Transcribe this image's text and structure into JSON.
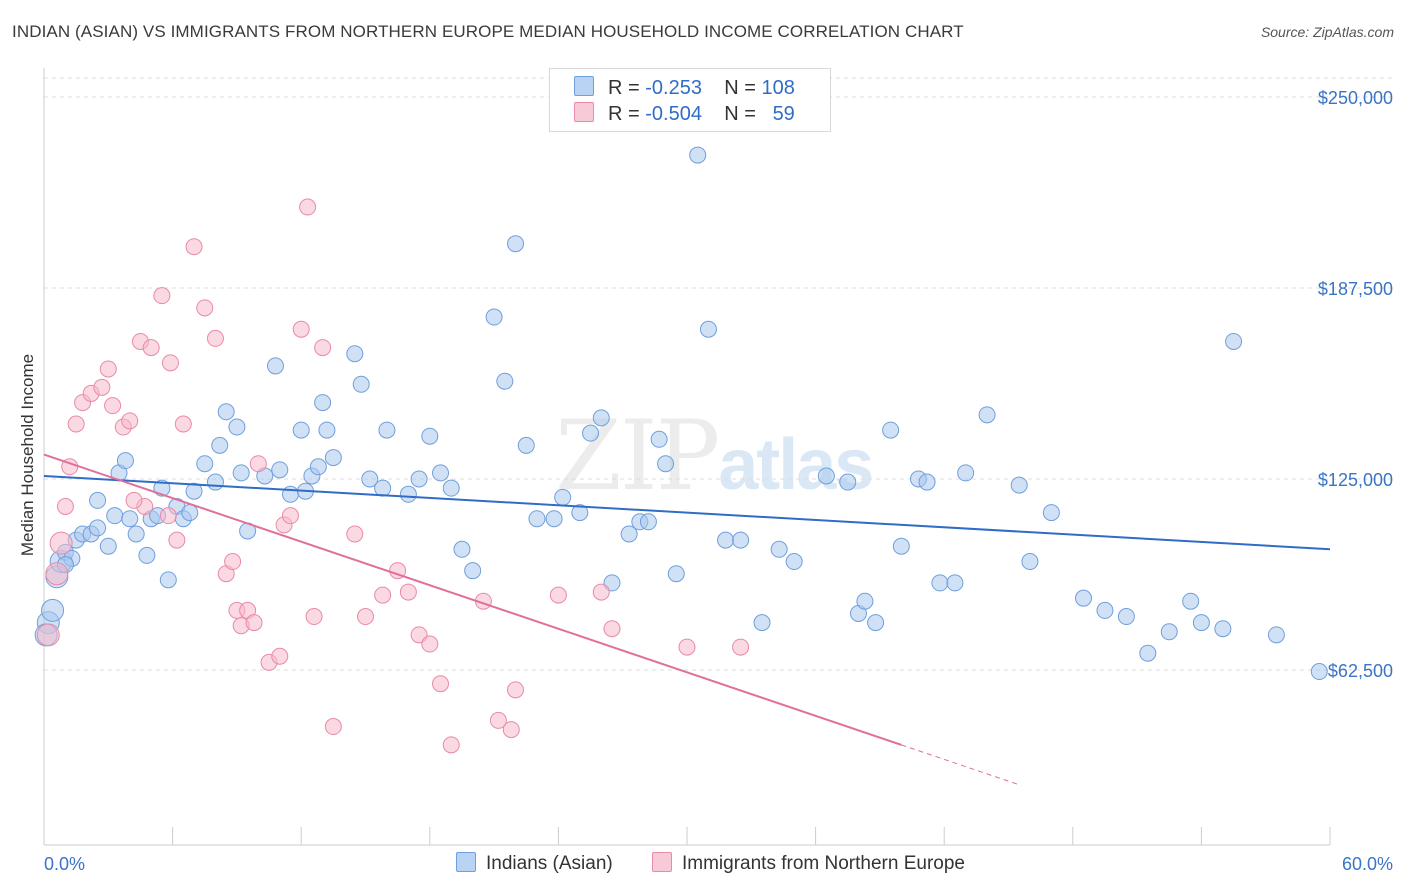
{
  "header": {
    "title": "INDIAN (ASIAN) VS IMMIGRANTS FROM NORTHERN EUROPE MEDIAN HOUSEHOLD INCOME CORRELATION CHART",
    "source": "Source: ZipAtlas.com"
  },
  "watermark": {
    "zip": "ZIP",
    "atlas": "atlas"
  },
  "legend": {
    "series1": {
      "r_label": "R =",
      "r_value": "-0.253",
      "n_label": "N =",
      "n_value": "108"
    },
    "series2": {
      "r_label": "R =",
      "r_value": "-0.504",
      "n_label": "N =",
      "n_value": "59"
    }
  },
  "colors": {
    "blue_fill": "#a9c8ef",
    "blue_stroke": "#6f9fdc",
    "blue_line": "#2f6dc6",
    "pink_fill": "#f5b9cb",
    "pink_stroke": "#e98aa8",
    "pink_line": "#e0709a",
    "axis_text": "#3b74c6",
    "grid": "#dcdcdc"
  },
  "chart_data": {
    "type": "scatter",
    "title": "INDIAN (ASIAN) VS IMMIGRANTS FROM NORTHERN EUROPE MEDIAN HOUSEHOLD INCOME CORRELATION CHART",
    "xlabel": "",
    "ylabel": "Median Household Income",
    "xlim": [
      0,
      60
    ],
    "ylim": [
      30000,
      250000
    ],
    "x_tick_labels": [
      "0.0%",
      "60.0%"
    ],
    "y_ticks": [
      62500,
      125000,
      187500,
      250000
    ],
    "y_tick_labels": [
      "$62,500",
      "$125,000",
      "$187,500",
      "$250,000"
    ],
    "grid": "horizontal dashed",
    "legend_placement": "top-center",
    "series": [
      {
        "name": "Indians (Asian)",
        "color": "#a9c8ef",
        "trend": {
          "x": [
            0,
            60
          ],
          "y": [
            126000,
            102000
          ]
        },
        "points": [
          [
            0.2,
            78000
          ],
          [
            0.4,
            82000
          ],
          [
            0.6,
            93000
          ],
          [
            0.8,
            98000
          ],
          [
            1.0,
            101000
          ],
          [
            1.3,
            99000
          ],
          [
            1.5,
            105000
          ],
          [
            1.8,
            107000
          ],
          [
            2.2,
            107000
          ],
          [
            2.5,
            109000
          ],
          [
            3.0,
            103000
          ],
          [
            3.3,
            113000
          ],
          [
            3.5,
            127000
          ],
          [
            4.0,
            112000
          ],
          [
            4.3,
            107000
          ],
          [
            4.8,
            100000
          ],
          [
            5.0,
            112000
          ],
          [
            5.3,
            113000
          ],
          [
            5.5,
            122000
          ],
          [
            5.8,
            92000
          ],
          [
            6.2,
            116000
          ],
          [
            6.5,
            112000
          ],
          [
            7.0,
            121000
          ],
          [
            7.5,
            130000
          ],
          [
            8.0,
            124000
          ],
          [
            8.2,
            136000
          ],
          [
            8.5,
            147000
          ],
          [
            9.0,
            142000
          ],
          [
            9.2,
            127000
          ],
          [
            9.5,
            108000
          ],
          [
            10.3,
            126000
          ],
          [
            10.8,
            162000
          ],
          [
            11.0,
            128000
          ],
          [
            11.5,
            120000
          ],
          [
            12.0,
            141000
          ],
          [
            12.2,
            121000
          ],
          [
            12.5,
            126000
          ],
          [
            13.0,
            150000
          ],
          [
            13.2,
            141000
          ],
          [
            13.5,
            132000
          ],
          [
            14.5,
            166000
          ],
          [
            14.8,
            156000
          ],
          [
            15.2,
            125000
          ],
          [
            15.8,
            122000
          ],
          [
            16.0,
            141000
          ],
          [
            17.0,
            120000
          ],
          [
            17.5,
            125000
          ],
          [
            18.0,
            139000
          ],
          [
            18.5,
            127000
          ],
          [
            19.0,
            122000
          ],
          [
            19.5,
            102000
          ],
          [
            20.0,
            95000
          ],
          [
            21.0,
            178000
          ],
          [
            21.5,
            157000
          ],
          [
            22.0,
            202000
          ],
          [
            22.5,
            136000
          ],
          [
            23.0,
            112000
          ],
          [
            23.8,
            112000
          ],
          [
            24.2,
            119000
          ],
          [
            25.0,
            114000
          ],
          [
            25.5,
            140000
          ],
          [
            26.0,
            145000
          ],
          [
            26.5,
            91000
          ],
          [
            27.3,
            107000
          ],
          [
            27.8,
            111000
          ],
          [
            28.2,
            111000
          ],
          [
            28.7,
            138000
          ],
          [
            29.0,
            130000
          ],
          [
            29.5,
            94000
          ],
          [
            30.5,
            231000
          ],
          [
            31.0,
            174000
          ],
          [
            31.8,
            105000
          ],
          [
            32.5,
            105000
          ],
          [
            33.5,
            78000
          ],
          [
            34.3,
            102000
          ],
          [
            35.0,
            98000
          ],
          [
            36.5,
            126000
          ],
          [
            37.5,
            124000
          ],
          [
            38.0,
            81000
          ],
          [
            38.3,
            85000
          ],
          [
            38.8,
            78000
          ],
          [
            39.5,
            141000
          ],
          [
            40.0,
            103000
          ],
          [
            40.8,
            125000
          ],
          [
            41.2,
            124000
          ],
          [
            41.8,
            91000
          ],
          [
            42.5,
            91000
          ],
          [
            43.0,
            127000
          ],
          [
            44.0,
            146000
          ],
          [
            45.5,
            123000
          ],
          [
            46.0,
            98000
          ],
          [
            47.0,
            114000
          ],
          [
            48.5,
            86000
          ],
          [
            49.5,
            82000
          ],
          [
            50.5,
            80000
          ],
          [
            51.5,
            68000
          ],
          [
            52.5,
            75000
          ],
          [
            53.5,
            85000
          ],
          [
            54.0,
            78000
          ],
          [
            55.0,
            76000
          ],
          [
            55.5,
            170000
          ],
          [
            57.5,
            74000
          ],
          [
            59.5,
            62000
          ],
          [
            0.1,
            74000
          ],
          [
            1.0,
            97000
          ],
          [
            2.5,
            118000
          ],
          [
            3.8,
            131000
          ],
          [
            6.8,
            114000
          ],
          [
            12.8,
            129000
          ]
        ]
      },
      {
        "name": "Immigrants from Northern Europe",
        "color": "#f5b9cb",
        "trend": {
          "x": [
            0,
            40
          ],
          "y": [
            133000,
            38000
          ]
        },
        "points": [
          [
            0.2,
            74000
          ],
          [
            0.6,
            94000
          ],
          [
            0.8,
            104000
          ],
          [
            1.0,
            116000
          ],
          [
            1.2,
            129000
          ],
          [
            1.5,
            143000
          ],
          [
            1.8,
            150000
          ],
          [
            2.2,
            153000
          ],
          [
            2.7,
            155000
          ],
          [
            3.2,
            149000
          ],
          [
            3.7,
            142000
          ],
          [
            4.0,
            144000
          ],
          [
            4.5,
            170000
          ],
          [
            4.7,
            116000
          ],
          [
            5.0,
            168000
          ],
          [
            5.5,
            185000
          ],
          [
            5.9,
            163000
          ],
          [
            6.5,
            143000
          ],
          [
            7.0,
            201000
          ],
          [
            7.5,
            181000
          ],
          [
            8.0,
            171000
          ],
          [
            8.5,
            94000
          ],
          [
            9.0,
            82000
          ],
          [
            9.2,
            77000
          ],
          [
            9.5,
            82000
          ],
          [
            9.8,
            78000
          ],
          [
            10.0,
            130000
          ],
          [
            10.5,
            65000
          ],
          [
            11.0,
            67000
          ],
          [
            11.2,
            110000
          ],
          [
            11.5,
            113000
          ],
          [
            12.0,
            174000
          ],
          [
            12.3,
            214000
          ],
          [
            12.6,
            80000
          ],
          [
            13.0,
            168000
          ],
          [
            13.5,
            44000
          ],
          [
            14.5,
            107000
          ],
          [
            15.0,
            80000
          ],
          [
            15.8,
            87000
          ],
          [
            16.5,
            95000
          ],
          [
            17.0,
            88000
          ],
          [
            17.5,
            74000
          ],
          [
            18.0,
            71000
          ],
          [
            18.5,
            58000
          ],
          [
            19.0,
            38000
          ],
          [
            20.5,
            85000
          ],
          [
            21.2,
            46000
          ],
          [
            21.8,
            43000
          ],
          [
            22.0,
            56000
          ],
          [
            24.0,
            87000
          ],
          [
            26.0,
            88000
          ],
          [
            26.5,
            76000
          ],
          [
            30.0,
            70000
          ],
          [
            32.5,
            70000
          ],
          [
            4.2,
            118000
          ],
          [
            5.8,
            113000
          ],
          [
            3.0,
            161000
          ],
          [
            6.2,
            105000
          ],
          [
            8.8,
            98000
          ]
        ]
      }
    ]
  },
  "bottom_legend": {
    "series1": "Indians (Asian)",
    "series2": "Immigrants from Northern Europe"
  },
  "axis": {
    "x_left": "0.0%",
    "x_right": "60.0%",
    "y_labels": [
      "$62,500",
      "$125,000",
      "$187,500",
      "$250,000"
    ]
  }
}
